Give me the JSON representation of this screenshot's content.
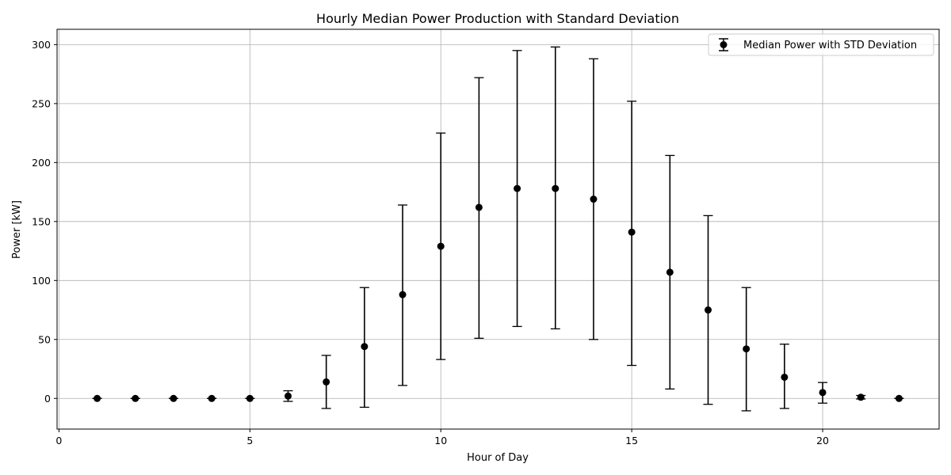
{
  "chart_data": {
    "type": "scatter",
    "title": "Hourly Median Power Production with Standard Deviation",
    "xlabel": "Hour of Day",
    "ylabel": "Power [kW]",
    "xlim": [
      -0.05,
      23.05
    ],
    "ylim": [
      -26,
      313
    ],
    "xticks": [
      0,
      5,
      10,
      15,
      20
    ],
    "yticks": [
      0,
      50,
      100,
      150,
      200,
      250,
      300
    ],
    "grid": true,
    "legend": {
      "position": "top-right",
      "entries": [
        "Median Power with STD Deviation"
      ]
    },
    "colors": {
      "marker": "#000000",
      "errorbar": "#000000",
      "grid": "#b0b0b0"
    },
    "series": [
      {
        "name": "Median Power with STD Deviation",
        "x": [
          1,
          2,
          3,
          4,
          5,
          6,
          7,
          8,
          9,
          10,
          11,
          12,
          13,
          14,
          15,
          16,
          17,
          18,
          19,
          20,
          21,
          22
        ],
        "y": [
          0,
          0,
          0,
          0,
          0,
          2,
          14,
          44,
          88,
          129,
          162,
          178,
          178,
          169,
          141,
          107,
          75,
          42,
          18,
          5,
          1,
          0
        ],
        "yerr_low": [
          0,
          0,
          0,
          0,
          0,
          -2.5,
          -8.5,
          -7.5,
          11,
          33,
          51,
          61,
          59,
          50,
          28,
          8,
          -5,
          -10.5,
          -8.5,
          -4,
          -0.5,
          0
        ],
        "yerr_high": [
          0,
          0,
          0,
          0,
          0,
          6.5,
          36.5,
          94,
          164,
          225,
          272,
          295,
          298,
          288,
          252,
          206,
          155,
          94,
          46,
          13.5,
          2.5,
          0
        ]
      }
    ]
  }
}
